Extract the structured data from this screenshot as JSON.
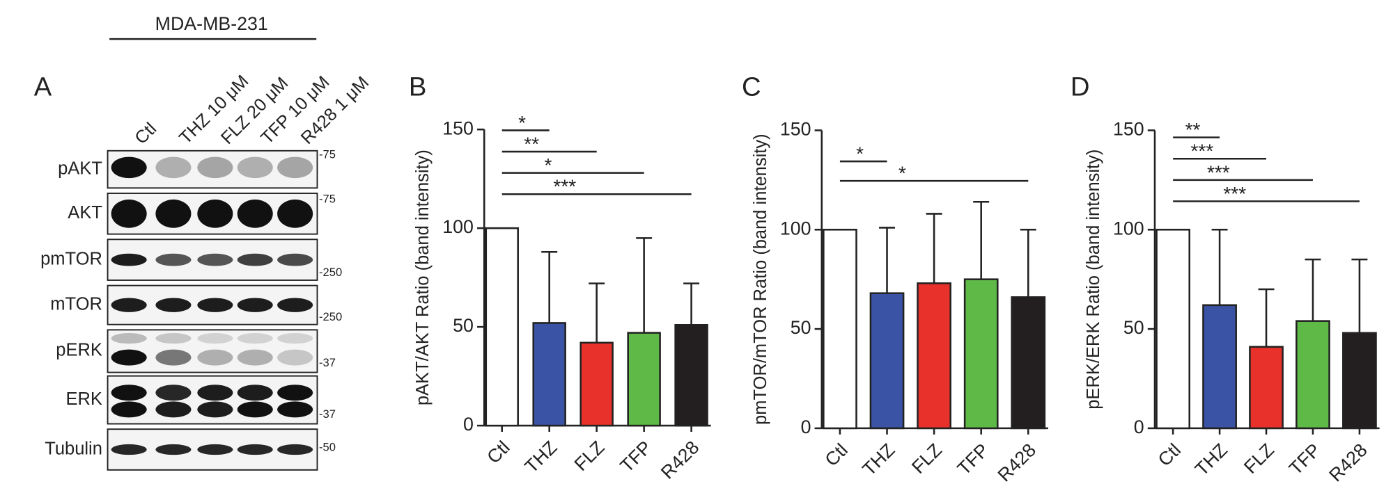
{
  "blot": {
    "cell_line": "MDA-MB-231",
    "panel": "A",
    "lanes": [
      "Ctl",
      "THZ 10 μM",
      "FLZ 20 μM",
      "TFP 10 μM",
      "R428 1 μM"
    ],
    "rows": [
      {
        "label": "pAKT",
        "marker": "-75"
      },
      {
        "label": "AKT",
        "marker": "-75"
      },
      {
        "label": "pmTOR",
        "marker": "-250"
      },
      {
        "label": "mTOR",
        "marker": "-250"
      },
      {
        "label": "pERK",
        "marker": "-37"
      },
      {
        "label": "ERK",
        "marker": "-37"
      },
      {
        "label": "Tubulin",
        "marker": "-50"
      }
    ]
  },
  "chart_data": [
    {
      "type": "bar",
      "panel": "B",
      "ylabel": "pAKT/AKT Ratio (band intensity)",
      "categories": [
        "Ctl",
        "THZ",
        "FLZ",
        "TFP",
        "R428"
      ],
      "values": [
        100,
        52,
        42,
        47,
        51
      ],
      "errors": [
        null,
        36,
        30,
        48,
        21
      ],
      "colors": [
        "#ffffff",
        "#3a53a4",
        "#e8312a",
        "#5fb946",
        "#231f20"
      ],
      "ylim": [
        0,
        150
      ],
      "yticks": [
        0,
        50,
        100,
        150
      ],
      "comparisons": [
        {
          "label": "*",
          "from": 0,
          "to": 1
        },
        {
          "label": "**",
          "from": 0,
          "to": 2
        },
        {
          "label": "*",
          "from": 0,
          "to": 3
        },
        {
          "label": "***",
          "from": 0,
          "to": 4
        }
      ]
    },
    {
      "type": "bar",
      "panel": "C",
      "ylabel": "pmTOR/mTOR Ratio (band intensity)",
      "categories": [
        "Ctl",
        "THZ",
        "FLZ",
        "TFP",
        "R428"
      ],
      "values": [
        100,
        68,
        73,
        75,
        66
      ],
      "errors": [
        null,
        33,
        35,
        39,
        34
      ],
      "colors": [
        "#ffffff",
        "#3a53a4",
        "#e8312a",
        "#5fb946",
        "#231f20"
      ],
      "ylim": [
        0,
        150
      ],
      "yticks": [
        0,
        50,
        100,
        150
      ],
      "comparisons": [
        {
          "label": "*",
          "from": 0,
          "to": 1
        },
        {
          "label": "*",
          "from": 0,
          "to": 4
        }
      ]
    },
    {
      "type": "bar",
      "panel": "D",
      "ylabel": "pERK/ERK Ratio (band intensity)",
      "categories": [
        "Ctl",
        "THZ",
        "FLZ",
        "TFP",
        "R428"
      ],
      "values": [
        100,
        62,
        41,
        54,
        48
      ],
      "errors": [
        null,
        38,
        29,
        31,
        37
      ],
      "colors": [
        "#ffffff",
        "#3a53a4",
        "#e8312a",
        "#5fb946",
        "#231f20"
      ],
      "ylim": [
        0,
        150
      ],
      "yticks": [
        0,
        50,
        100,
        150
      ],
      "comparisons": [
        {
          "label": "**",
          "from": 0,
          "to": 1
        },
        {
          "label": "***",
          "from": 0,
          "to": 2
        },
        {
          "label": "***",
          "from": 0,
          "to": 3
        },
        {
          "label": "***",
          "from": 0,
          "to": 4
        }
      ]
    }
  ]
}
